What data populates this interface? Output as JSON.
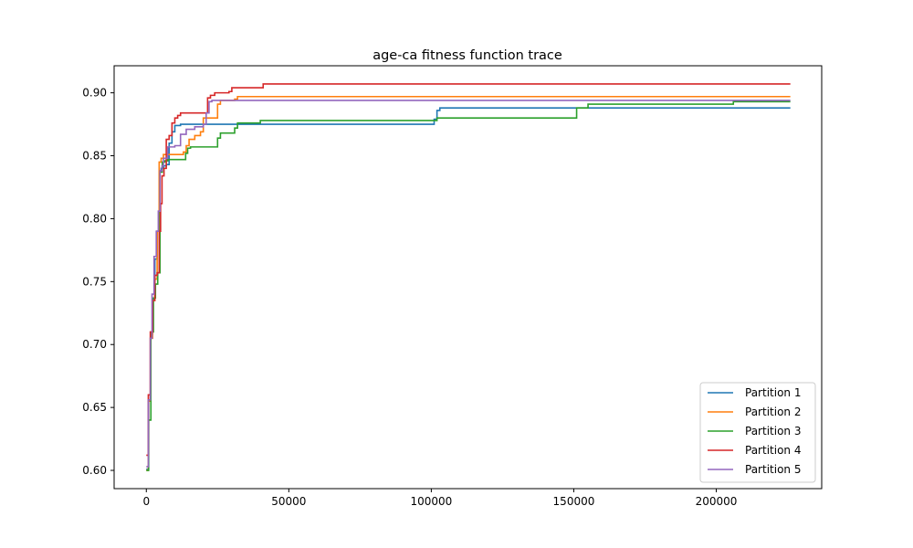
{
  "chart_data": {
    "type": "line",
    "title": "age-ca fitness function trace",
    "xlabel": "",
    "ylabel": "",
    "xlim": [
      -11300,
      237000
    ],
    "ylim": [
      0.5855,
      0.9215
    ],
    "x_ticks": [
      0,
      50000,
      100000,
      150000,
      200000
    ],
    "x_tick_labels": [
      "0",
      "50000",
      "100000",
      "150000",
      "200000"
    ],
    "y_ticks": [
      0.6,
      0.65,
      0.7,
      0.75,
      0.8,
      0.85,
      0.9
    ],
    "y_tick_labels": [
      "0.60",
      "0.65",
      "0.70",
      "0.75",
      "0.80",
      "0.85",
      "0.90"
    ],
    "grid": false,
    "legend_position": "lower-right",
    "series": [
      {
        "name": "Partition 1",
        "color": "#1f77b4",
        "points": [
          [
            0,
            0.601
          ],
          [
            800,
            0.655
          ],
          [
            1500,
            0.708
          ],
          [
            2200,
            0.737
          ],
          [
            3000,
            0.768
          ],
          [
            3800,
            0.79
          ],
          [
            4500,
            0.838
          ],
          [
            5200,
            0.84
          ],
          [
            6000,
            0.842
          ],
          [
            7000,
            0.843
          ],
          [
            8000,
            0.86
          ],
          [
            9000,
            0.869
          ],
          [
            10000,
            0.874
          ],
          [
            12000,
            0.875
          ],
          [
            100000,
            0.875
          ],
          [
            101000,
            0.879
          ],
          [
            102000,
            0.886
          ],
          [
            103000,
            0.888
          ],
          [
            226000,
            0.888
          ]
        ]
      },
      {
        "name": "Partition 2",
        "color": "#ff7f0e",
        "points": [
          [
            0,
            0.6
          ],
          [
            700,
            0.655
          ],
          [
            1400,
            0.705
          ],
          [
            2200,
            0.735
          ],
          [
            3000,
            0.752
          ],
          [
            3800,
            0.79
          ],
          [
            4500,
            0.845
          ],
          [
            5200,
            0.848
          ],
          [
            6000,
            0.851
          ],
          [
            7000,
            0.851
          ],
          [
            13000,
            0.853
          ],
          [
            14000,
            0.858
          ],
          [
            15000,
            0.863
          ],
          [
            17000,
            0.866
          ],
          [
            19000,
            0.869
          ],
          [
            20000,
            0.88
          ],
          [
            24000,
            0.88
          ],
          [
            25000,
            0.891
          ],
          [
            26000,
            0.894
          ],
          [
            31000,
            0.895
          ],
          [
            32000,
            0.897
          ],
          [
            226000,
            0.897
          ]
        ]
      },
      {
        "name": "Partition 3",
        "color": "#2ca02c",
        "points": [
          [
            0,
            0.6
          ],
          [
            800,
            0.64
          ],
          [
            1600,
            0.71
          ],
          [
            2500,
            0.737
          ],
          [
            3200,
            0.748
          ],
          [
            4000,
            0.757
          ],
          [
            4800,
            0.837
          ],
          [
            5600,
            0.845
          ],
          [
            6500,
            0.846
          ],
          [
            7500,
            0.847
          ],
          [
            13000,
            0.847
          ],
          [
            13800,
            0.852
          ],
          [
            14500,
            0.856
          ],
          [
            15500,
            0.857
          ],
          [
            24000,
            0.857
          ],
          [
            25000,
            0.864
          ],
          [
            26000,
            0.868
          ],
          [
            30000,
            0.868
          ],
          [
            31000,
            0.872
          ],
          [
            32000,
            0.876
          ],
          [
            38000,
            0.876
          ],
          [
            40000,
            0.878
          ],
          [
            101000,
            0.878
          ],
          [
            102000,
            0.88
          ],
          [
            150000,
            0.88
          ],
          [
            151000,
            0.888
          ],
          [
            155000,
            0.891
          ],
          [
            205000,
            0.891
          ],
          [
            206000,
            0.893
          ],
          [
            226000,
            0.893
          ]
        ]
      },
      {
        "name": "Partition 4",
        "color": "#d62728",
        "points": [
          [
            0,
            0.612
          ],
          [
            700,
            0.66
          ],
          [
            1400,
            0.71
          ],
          [
            2200,
            0.735
          ],
          [
            3000,
            0.755
          ],
          [
            3800,
            0.757
          ],
          [
            4500,
            0.79
          ],
          [
            5000,
            0.812
          ],
          [
            5500,
            0.834
          ],
          [
            6200,
            0.84
          ],
          [
            7000,
            0.863
          ],
          [
            8000,
            0.866
          ],
          [
            9000,
            0.876
          ],
          [
            10000,
            0.88
          ],
          [
            11000,
            0.882
          ],
          [
            12000,
            0.884
          ],
          [
            21000,
            0.884
          ],
          [
            21500,
            0.896
          ],
          [
            22500,
            0.898
          ],
          [
            24000,
            0.9
          ],
          [
            29000,
            0.901
          ],
          [
            30000,
            0.904
          ],
          [
            40000,
            0.904
          ],
          [
            41000,
            0.907
          ],
          [
            226000,
            0.907
          ]
        ]
      },
      {
        "name": "Partition 5",
        "color": "#9467bd",
        "points": [
          [
            0,
            0.603
          ],
          [
            700,
            0.656
          ],
          [
            1400,
            0.705
          ],
          [
            2000,
            0.74
          ],
          [
            2700,
            0.77
          ],
          [
            3500,
            0.79
          ],
          [
            4200,
            0.806
          ],
          [
            4800,
            0.838
          ],
          [
            5500,
            0.842
          ],
          [
            6000,
            0.848
          ],
          [
            7500,
            0.857
          ],
          [
            10000,
            0.858
          ],
          [
            12000,
            0.867
          ],
          [
            14000,
            0.871
          ],
          [
            17000,
            0.873
          ],
          [
            19000,
            0.873
          ],
          [
            20000,
            0.875
          ],
          [
            21000,
            0.884
          ],
          [
            22000,
            0.893
          ],
          [
            23000,
            0.894
          ],
          [
            226000,
            0.894
          ]
        ]
      }
    ]
  }
}
